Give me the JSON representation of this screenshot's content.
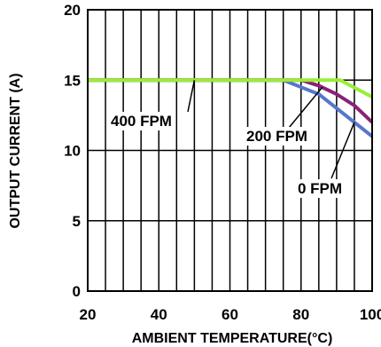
{
  "chart_data": {
    "type": "line",
    "title": "",
    "xlabel": "AMBIENT TEMPERATURE(°C)",
    "ylabel": "OUTPUT CURRENT (A)",
    "xlim": [
      20,
      100
    ],
    "ylim": [
      0,
      20
    ],
    "x_ticks": [
      20,
      40,
      60,
      80,
      100
    ],
    "y_ticks": [
      0,
      5,
      10,
      15,
      20
    ],
    "grid": true,
    "series": [
      {
        "name": "400 FPM",
        "color": "#99ee33",
        "x": [
          20,
          91,
          100
        ],
        "y": [
          15,
          15,
          13.8
        ]
      },
      {
        "name": "200 FPM",
        "color": "#882277",
        "x": [
          20,
          80,
          85,
          90,
          95,
          100
        ],
        "y": [
          15,
          15,
          14.6,
          14,
          13.2,
          12
        ]
      },
      {
        "name": "0 FPM",
        "color": "#5577cc",
        "x": [
          20,
          75,
          80,
          85,
          90,
          95,
          100
        ],
        "y": [
          15,
          15,
          14.5,
          14,
          13,
          12,
          11
        ]
      }
    ]
  }
}
